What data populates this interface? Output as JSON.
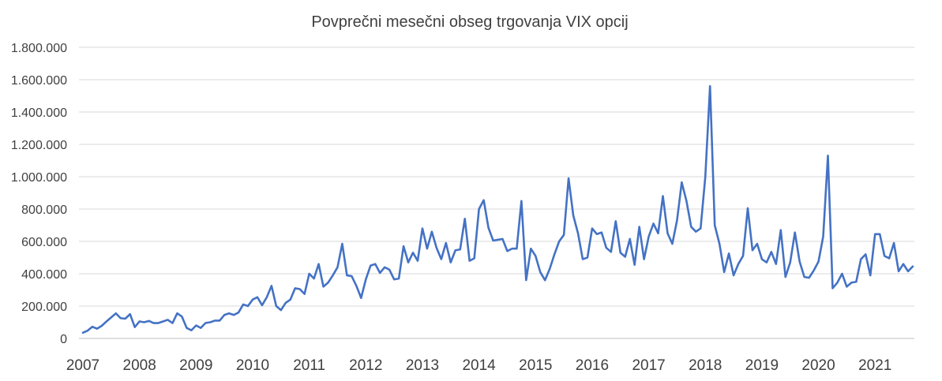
{
  "chart_data": {
    "type": "line",
    "title": "Povprečni mesečni obseg trgovanja VIX opcij",
    "xlabel": "",
    "ylabel": "",
    "ylim": [
      0,
      1800000
    ],
    "yticks": [
      0,
      200000,
      400000,
      600000,
      800000,
      1000000,
      1200000,
      1400000,
      1600000,
      1800000
    ],
    "ytick_labels": [
      "0",
      "200.000",
      "400.000",
      "600.000",
      "800.000",
      "1.000.000",
      "1.200.000",
      "1.400.000",
      "1.600.000",
      "1.800.000"
    ],
    "xtick_labels": [
      "2007",
      "2008",
      "2009",
      "2010",
      "2011",
      "2012",
      "2013",
      "2014",
      "2015",
      "2016",
      "2017",
      "2018",
      "2019",
      "2020",
      "2021"
    ],
    "x_start": "2007-01",
    "x_end": "2021-09",
    "grid": "horizontal",
    "legend": "none",
    "series": [
      {
        "color": "#4472c4",
        "values": [
          35000,
          48000,
          72000,
          60000,
          78000,
          105000,
          130000,
          155000,
          125000,
          122000,
          150000,
          70000,
          105000,
          100000,
          108000,
          95000,
          95000,
          105000,
          115000,
          95000,
          155000,
          135000,
          65000,
          50000,
          80000,
          65000,
          95000,
          100000,
          110000,
          110000,
          145000,
          155000,
          145000,
          160000,
          210000,
          200000,
          240000,
          255000,
          205000,
          255000,
          325000,
          200000,
          175000,
          220000,
          240000,
          310000,
          305000,
          275000,
          400000,
          370000,
          460000,
          320000,
          345000,
          390000,
          440000,
          585000,
          390000,
          385000,
          325000,
          250000,
          365000,
          450000,
          460000,
          405000,
          440000,
          425000,
          365000,
          370000,
          570000,
          470000,
          530000,
          480000,
          680000,
          555000,
          660000,
          560000,
          490000,
          590000,
          470000,
          545000,
          550000,
          740000,
          480000,
          495000,
          800000,
          855000,
          685000,
          605000,
          610000,
          615000,
          540000,
          555000,
          555000,
          850000,
          360000,
          555000,
          510000,
          410000,
          360000,
          430000,
          520000,
          600000,
          640000,
          990000,
          760000,
          650000,
          490000,
          500000,
          680000,
          645000,
          655000,
          560000,
          535000,
          725000,
          530000,
          505000,
          615000,
          455000,
          690000,
          490000,
          630000,
          710000,
          650000,
          880000,
          650000,
          585000,
          730000,
          965000,
          850000,
          690000,
          660000,
          680000,
          1000000,
          1560000,
          700000,
          585000,
          410000,
          525000,
          390000,
          460000,
          510000,
          805000,
          545000,
          585000,
          490000,
          470000,
          535000,
          460000,
          670000,
          380000,
          470000,
          655000,
          475000,
          380000,
          375000,
          420000,
          475000,
          630000,
          1130000,
          310000,
          345000,
          400000,
          320000,
          345000,
          350000,
          490000,
          520000,
          390000,
          645000,
          645000,
          510000,
          495000,
          590000,
          415000,
          460000,
          415000,
          445000
        ]
      }
    ]
  }
}
